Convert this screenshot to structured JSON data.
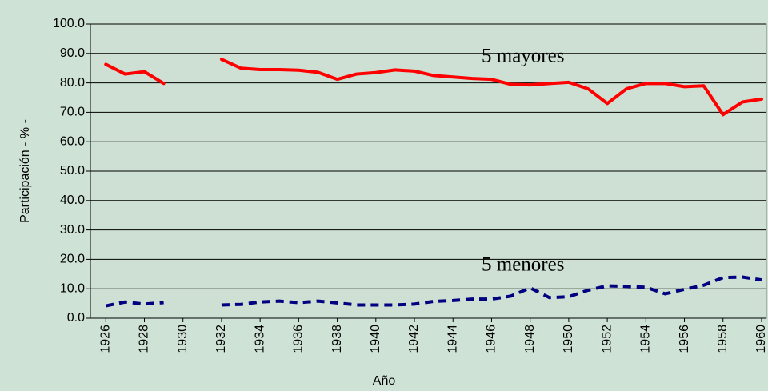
{
  "chart_data": {
    "type": "line",
    "x": [
      1926,
      1927,
      1928,
      1929,
      1930,
      1931,
      1932,
      1933,
      1934,
      1935,
      1936,
      1937,
      1938,
      1939,
      1940,
      1941,
      1942,
      1943,
      1944,
      1945,
      1946,
      1947,
      1948,
      1949,
      1950,
      1951,
      1952,
      1953,
      1954,
      1955,
      1956,
      1957,
      1958,
      1959,
      1960
    ],
    "series": [
      {
        "name": "5 mayores",
        "color": "#ff0000",
        "dash": false,
        "values": [
          86.3,
          83.0,
          83.8,
          79.8,
          null,
          null,
          88.0,
          85.0,
          84.5,
          84.5,
          84.3,
          83.6,
          81.2,
          83.0,
          83.5,
          84.4,
          84.0,
          82.5,
          82.0,
          81.5,
          81.2,
          79.5,
          79.3,
          79.8,
          80.2,
          78.0,
          73.0,
          78.0,
          79.8,
          79.8,
          78.7,
          79.0,
          69.2,
          73.5,
          74.5
        ]
      },
      {
        "name": "5 menores",
        "color": "#000080",
        "dash": true,
        "values": [
          4.2,
          5.5,
          4.8,
          5.3,
          null,
          null,
          4.5,
          4.7,
          5.5,
          5.8,
          5.3,
          5.8,
          5.2,
          4.5,
          4.5,
          4.5,
          4.8,
          5.7,
          6.0,
          6.5,
          6.5,
          7.5,
          10.3,
          7.0,
          7.3,
          9.5,
          11.0,
          10.8,
          10.5,
          8.3,
          9.8,
          11.2,
          13.8,
          14.0,
          13.0
        ]
      }
    ],
    "xlabel": "Año",
    "ylabel": "Participación - % -",
    "xlim": [
      1925.2,
      1960.25
    ],
    "ylim": [
      0,
      100
    ],
    "xticks": [
      1926,
      1928,
      1930,
      1932,
      1934,
      1936,
      1938,
      1940,
      1942,
      1944,
      1946,
      1948,
      1950,
      1952,
      1954,
      1956,
      1958,
      1960
    ],
    "yticks": [
      {
        "value": 0,
        "label": "0.0"
      },
      {
        "value": 10,
        "label": "10.0"
      },
      {
        "value": 20,
        "label": "20.0"
      },
      {
        "value": 30,
        "label": "30.0"
      },
      {
        "value": 40,
        "label": "40.0"
      },
      {
        "value": 50,
        "label": "50.0"
      },
      {
        "value": 60,
        "label": "60.0"
      },
      {
        "value": 70,
        "label": "70.0"
      },
      {
        "value": 80,
        "label": "80.0"
      },
      {
        "value": 90,
        "label": "90.0"
      },
      {
        "value": 100,
        "label": "100.0"
      }
    ],
    "grid": true
  }
}
